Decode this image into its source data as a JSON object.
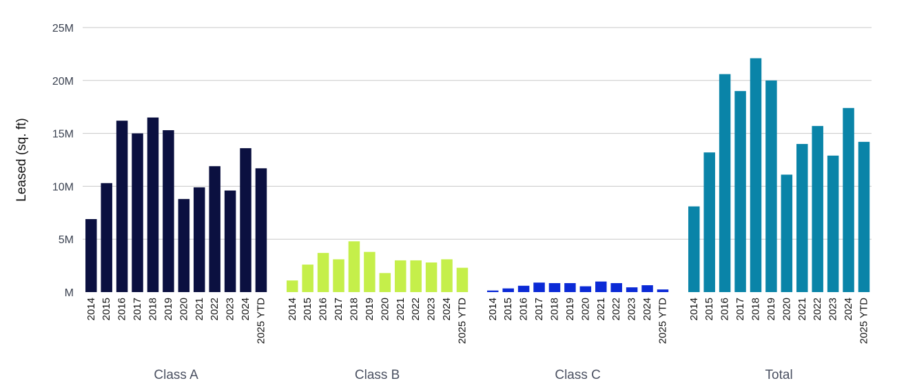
{
  "chart_data": {
    "type": "bar",
    "ylabel": "Leased (sq. ft)",
    "ylim": [
      0,
      25000000
    ],
    "y_ticks": [
      {
        "value": 0,
        "label": "M"
      },
      {
        "value": 5000000,
        "label": "5M"
      },
      {
        "value": 10000000,
        "label": "10M"
      },
      {
        "value": 15000000,
        "label": "15M"
      },
      {
        "value": 20000000,
        "label": "20M"
      },
      {
        "value": 25000000,
        "label": "25M"
      }
    ],
    "grid": true,
    "categories": [
      "2014",
      "2015",
      "2016",
      "2017",
      "2018",
      "2019",
      "2020",
      "2021",
      "2022",
      "2023",
      "2024",
      "2025 YTD"
    ],
    "groups": [
      {
        "name": "Class A",
        "color": "#0b1040",
        "values": [
          6900000,
          10300000,
          16200000,
          15000000,
          16500000,
          15300000,
          8800000,
          9900000,
          11900000,
          9600000,
          13600000,
          11700000
        ]
      },
      {
        "name": "Class B",
        "color": "#c5ef4a",
        "values": [
          1100000,
          2600000,
          3700000,
          3100000,
          4800000,
          3800000,
          1800000,
          3000000,
          3000000,
          2800000,
          3100000,
          2300000
        ]
      },
      {
        "name": "Class C",
        "color": "#0b2ad6",
        "values": [
          150000,
          350000,
          600000,
          900000,
          850000,
          850000,
          550000,
          1000000,
          850000,
          450000,
          650000,
          250000
        ]
      },
      {
        "name": "Total",
        "color": "#0a84a8",
        "values": [
          8100000,
          13200000,
          20600000,
          19000000,
          22100000,
          20000000,
          11100000,
          14000000,
          15700000,
          12900000,
          17400000,
          14200000
        ]
      }
    ]
  }
}
